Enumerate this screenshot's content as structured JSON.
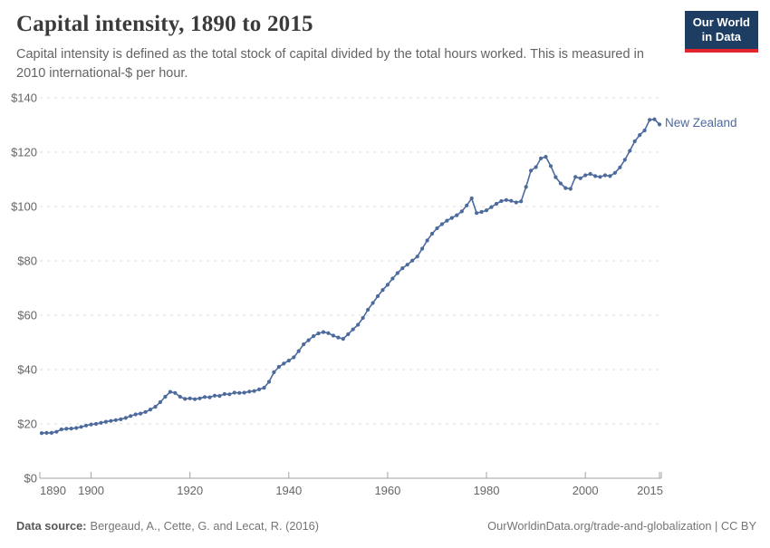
{
  "header": {
    "title": "Capital intensity, 1890 to 2015",
    "subtitle": "Capital intensity is defined as the total stock of capital divided by the total hours worked. This is measured in 2010 international-$ per hour."
  },
  "logo": {
    "line1": "Our World",
    "line2": "in Data",
    "bg_color": "#1d3d63",
    "accent_color": "#e0262c"
  },
  "chart_data": {
    "type": "line",
    "title": "Capital intensity, 1890 to 2015",
    "xlabel": "",
    "ylabel": "2010 international-$ per hour",
    "xlim": [
      1890,
      2015
    ],
    "ylim": [
      0,
      140
    ],
    "x_ticks": [
      1890,
      1900,
      1920,
      1940,
      1960,
      1980,
      2000,
      2015
    ],
    "y_ticks": [
      0,
      20,
      40,
      60,
      80,
      100,
      120,
      140
    ],
    "y_tick_prefix": "$",
    "grid": "horizontal-dashed",
    "legend_position": "end-of-line",
    "grid_color": "#dcdcdc",
    "axis_color": "#a3a3a3",
    "tick_label_color": "#666666",
    "series": [
      {
        "name": "New Zealand",
        "color": "#4c6a9c",
        "x": [
          1890,
          1891,
          1892,
          1893,
          1894,
          1895,
          1896,
          1897,
          1898,
          1899,
          1900,
          1901,
          1902,
          1903,
          1904,
          1905,
          1906,
          1907,
          1908,
          1909,
          1910,
          1911,
          1912,
          1913,
          1914,
          1915,
          1916,
          1917,
          1918,
          1919,
          1920,
          1921,
          1922,
          1923,
          1924,
          1925,
          1926,
          1927,
          1928,
          1929,
          1930,
          1931,
          1932,
          1933,
          1934,
          1935,
          1936,
          1937,
          1938,
          1939,
          1940,
          1941,
          1942,
          1943,
          1944,
          1945,
          1946,
          1947,
          1948,
          1949,
          1950,
          1951,
          1952,
          1953,
          1954,
          1955,
          1956,
          1957,
          1958,
          1959,
          1960,
          1961,
          1962,
          1963,
          1964,
          1965,
          1966,
          1967,
          1968,
          1969,
          1970,
          1971,
          1972,
          1973,
          1974,
          1975,
          1976,
          1977,
          1978,
          1979,
          1980,
          1981,
          1982,
          1983,
          1984,
          1985,
          1986,
          1987,
          1988,
          1989,
          1990,
          1991,
          1992,
          1993,
          1994,
          1995,
          1996,
          1997,
          1998,
          1999,
          2000,
          2001,
          2002,
          2003,
          2004,
          2005,
          2006,
          2007,
          2008,
          2009,
          2010,
          2011,
          2012,
          2013,
          2014,
          2015
        ],
        "values": [
          16.6,
          16.7,
          16.7,
          17.1,
          18.0,
          18.2,
          18.3,
          18.5,
          18.9,
          19.4,
          19.8,
          20.0,
          20.4,
          20.8,
          21.1,
          21.4,
          21.7,
          22.2,
          22.9,
          23.5,
          23.8,
          24.4,
          25.3,
          26.3,
          28.0,
          30.0,
          31.8,
          31.4,
          30.0,
          29.2,
          29.4,
          29.1,
          29.4,
          29.9,
          29.8,
          30.4,
          30.3,
          31.0,
          30.9,
          31.5,
          31.4,
          31.5,
          31.9,
          32.1,
          32.7,
          33.3,
          35.5,
          39.0,
          41.0,
          42.2,
          43.3,
          44.5,
          46.8,
          49.3,
          50.8,
          52.3,
          53.3,
          53.8,
          53.4,
          52.5,
          51.8,
          51.3,
          53.0,
          54.8,
          56.5,
          59.0,
          62.0,
          64.5,
          67.0,
          69.3,
          71.2,
          73.5,
          75.5,
          77.3,
          78.6,
          80.1,
          81.6,
          84.5,
          87.5,
          90.0,
          92.0,
          93.5,
          94.8,
          95.8,
          96.8,
          98.2,
          100.4,
          103.0,
          97.6,
          98.0,
          98.6,
          99.8,
          101.0,
          102.0,
          102.4,
          102.1,
          101.5,
          101.9,
          107.2,
          113.2,
          114.5,
          117.7,
          118.3,
          114.9,
          110.8,
          108.5,
          106.8,
          106.5,
          110.9,
          110.4,
          111.5,
          112.0,
          111.2,
          110.9,
          111.5,
          111.2,
          112.4,
          114.4,
          117.2,
          120.5,
          124.0,
          126.3,
          128.0,
          131.9,
          132.1,
          130.2
        ]
      }
    ]
  },
  "footer": {
    "source_label": "Data source:",
    "source_text": "Bergeaud, A., Cette, G. and Lecat, R. (2016)",
    "link_text": "OurWorldinData.org/trade-and-globalization",
    "separator": " | ",
    "license_text": "CC BY"
  }
}
